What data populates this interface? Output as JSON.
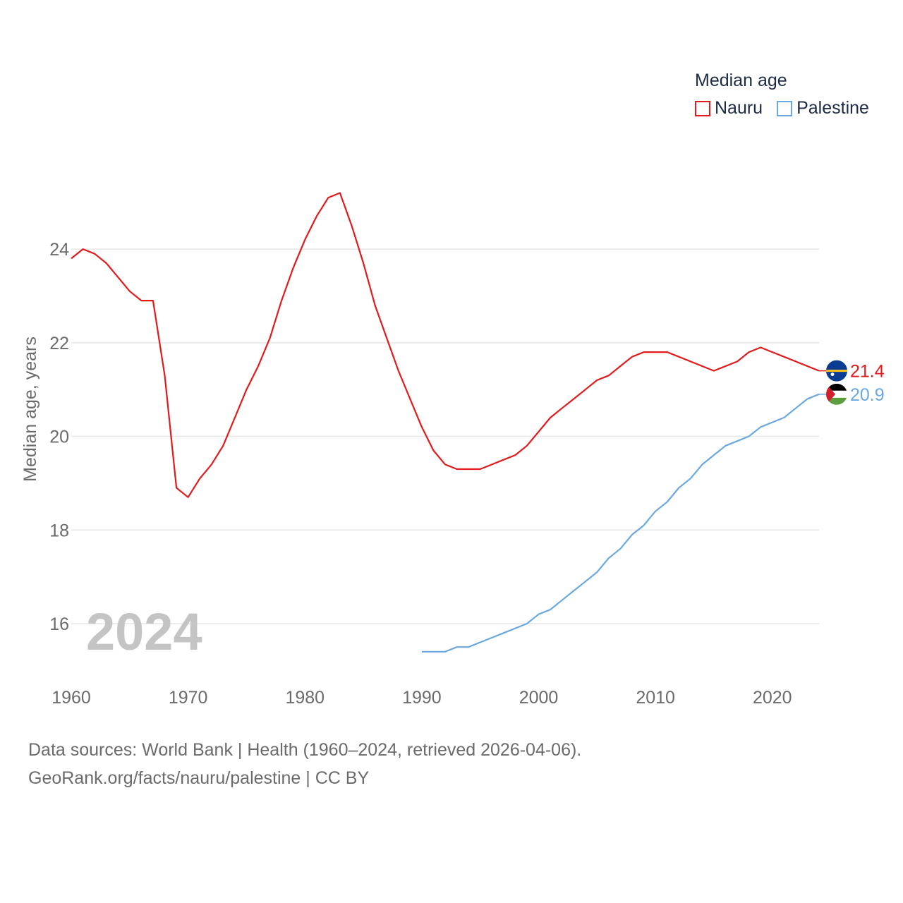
{
  "chart_data": {
    "type": "line",
    "title": "",
    "ylabel": "Median age, years",
    "xlabel": "",
    "year_watermark": "2024",
    "x_ticks": [
      "1960",
      "1970",
      "1980",
      "1990",
      "2000",
      "2010",
      "2020"
    ],
    "y_ticks": [
      "16",
      "18",
      "20",
      "22",
      "24"
    ],
    "xlim": [
      1960,
      2024
    ],
    "ylim": [
      14.9,
      25.9
    ],
    "legend": {
      "title": "Median age",
      "position": "top-right"
    },
    "series": [
      {
        "name": "Nauru",
        "color": "#e31a1c",
        "end_label": "21.4",
        "flag": "nauru-flag",
        "x": [
          1960,
          1961,
          1962,
          1963,
          1964,
          1965,
          1966,
          1967,
          1968,
          1969,
          1970,
          1971,
          1972,
          1973,
          1974,
          1975,
          1976,
          1977,
          1978,
          1979,
          1980,
          1981,
          1982,
          1983,
          1984,
          1985,
          1986,
          1987,
          1988,
          1989,
          1990,
          1991,
          1992,
          1993,
          1994,
          1995,
          1996,
          1997,
          1998,
          1999,
          2000,
          2001,
          2002,
          2003,
          2004,
          2005,
          2006,
          2007,
          2008,
          2009,
          2010,
          2011,
          2012,
          2013,
          2014,
          2015,
          2016,
          2017,
          2018,
          2019,
          2020,
          2021,
          2022,
          2023,
          2024
        ],
        "values": [
          23.8,
          24.0,
          23.9,
          23.7,
          23.4,
          23.1,
          22.9,
          22.9,
          21.3,
          18.9,
          18.7,
          19.1,
          19.4,
          19.8,
          20.4,
          21.0,
          21.5,
          22.1,
          22.9,
          23.6,
          24.2,
          24.7,
          25.1,
          25.2,
          24.5,
          23.7,
          22.8,
          22.1,
          21.4,
          20.8,
          20.2,
          19.7,
          19.4,
          19.3,
          19.3,
          19.3,
          19.4,
          19.5,
          19.6,
          19.8,
          20.1,
          20.4,
          20.6,
          20.8,
          21.0,
          21.2,
          21.3,
          21.5,
          21.7,
          21.8,
          21.8,
          21.8,
          21.7,
          21.6,
          21.5,
          21.4,
          21.5,
          21.6,
          21.8,
          21.9,
          21.8,
          21.7,
          21.6,
          21.5,
          21.4
        ]
      },
      {
        "name": "Palestine",
        "color": "#6aa8e0",
        "end_label": "20.9",
        "flag": "palestine-flag",
        "x": [
          1990,
          1991,
          1992,
          1993,
          1994,
          1995,
          1996,
          1997,
          1998,
          1999,
          2000,
          2001,
          2002,
          2003,
          2004,
          2005,
          2006,
          2007,
          2008,
          2009,
          2010,
          2011,
          2012,
          2013,
          2014,
          2015,
          2016,
          2017,
          2018,
          2019,
          2020,
          2021,
          2022,
          2023,
          2024
        ],
        "values": [
          15.4,
          15.4,
          15.4,
          15.5,
          15.5,
          15.6,
          15.7,
          15.8,
          15.9,
          16.0,
          16.2,
          16.3,
          16.5,
          16.7,
          16.9,
          17.1,
          17.4,
          17.6,
          17.9,
          18.1,
          18.4,
          18.6,
          18.9,
          19.1,
          19.4,
          19.6,
          19.8,
          19.9,
          20.0,
          20.2,
          20.3,
          20.4,
          20.6,
          20.8,
          20.9
        ]
      }
    ]
  },
  "footer": {
    "line1": "Data sources: World Bank | Health (1960–2024, retrieved 2026-04-06).",
    "link": "GeoRank.org/facts/nauru/palestine",
    "license": " | CC BY"
  }
}
